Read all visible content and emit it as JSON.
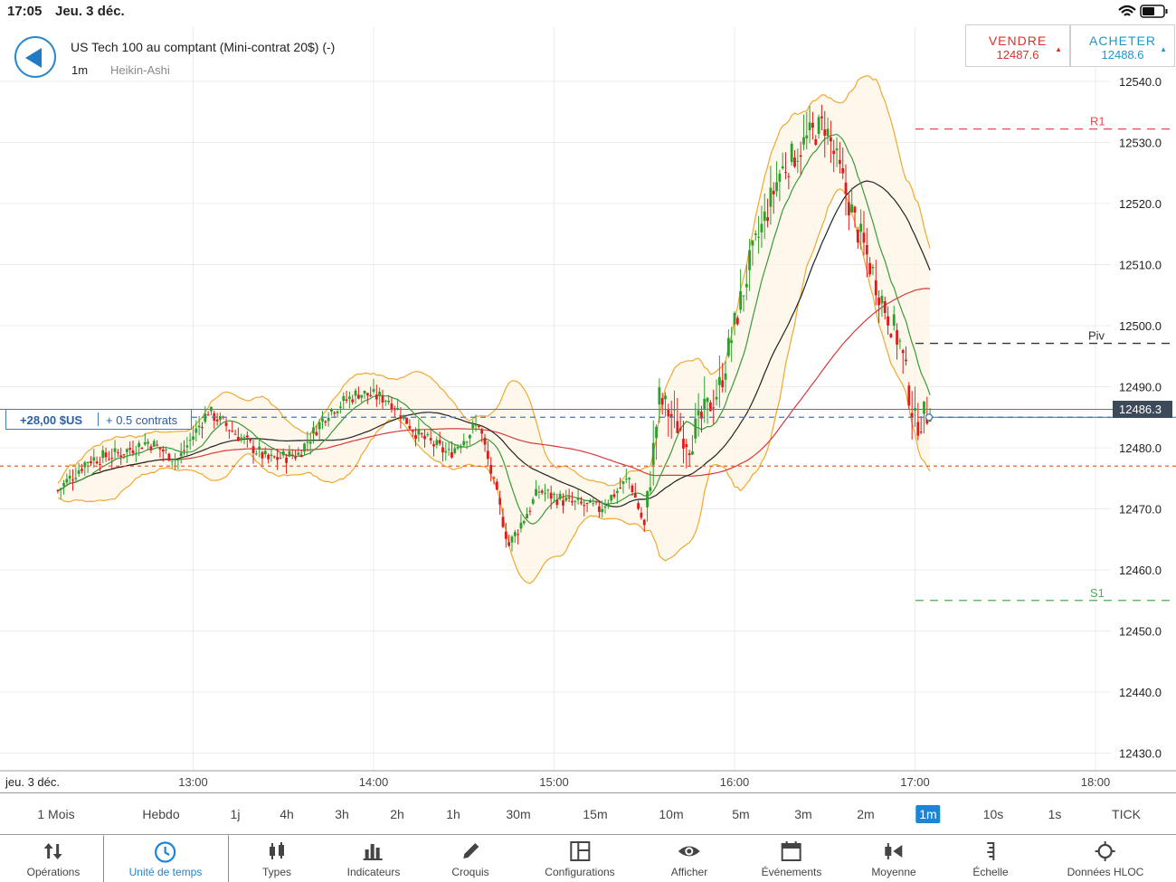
{
  "status": {
    "time": "17:05",
    "date": "Jeu. 3 déc."
  },
  "header": {
    "instrument": "US Tech 100 au comptant (Mini-contrat 20$) (-)",
    "timeframe": "1m",
    "chart_type": "Heikin-Ashi"
  },
  "trade": {
    "sell_label": "VENDRE",
    "sell_price": "12487.6",
    "buy_label": "ACHETER",
    "buy_price": "12488.6"
  },
  "position": {
    "pnl": "+28,00 $US",
    "contracts": "+ 0.5 contrats"
  },
  "price_tag": "12486.3",
  "levels": {
    "r1": "R1",
    "piv": "Piv",
    "s1": "S1"
  },
  "y_axis": [
    "12540.0",
    "12530.0",
    "12520.0",
    "12510.0",
    "12500.0",
    "12490.0",
    "12480.0",
    "12470.0",
    "12460.0",
    "12450.0",
    "12440.0",
    "12430.0"
  ],
  "x_axis": {
    "date": "jeu. 3 déc.",
    "times": [
      "13:00",
      "14:00",
      "15:00",
      "16:00",
      "17:00",
      "18:00"
    ]
  },
  "timeframes": {
    "items": [
      "1 Mois",
      "Hebdo",
      "1j",
      "4h",
      "3h",
      "2h",
      "1h",
      "30m",
      "15m",
      "10m",
      "5m",
      "3m",
      "2m",
      "1m",
      "10s",
      "1s",
      "TICK"
    ],
    "active": "1m"
  },
  "toolbar": {
    "items": [
      {
        "label": "Opérations",
        "icon": "arrows-updown-icon"
      },
      {
        "label": "Unité de temps",
        "icon": "clock-icon"
      },
      {
        "label": "Types",
        "icon": "candles-icon"
      },
      {
        "label": "Indicateurs",
        "icon": "bars-icon"
      },
      {
        "label": "Croquis",
        "icon": "pencil-icon"
      },
      {
        "label": "Configurations",
        "icon": "layout-icon"
      },
      {
        "label": "Afficher",
        "icon": "eye-icon"
      },
      {
        "label": "Événements",
        "icon": "calendar-icon"
      },
      {
        "label": "Moyenne",
        "icon": "average-icon"
      },
      {
        "label": "Échelle",
        "icon": "scale-icon"
      },
      {
        "label": "Données HLOC",
        "icon": "crosshair-icon"
      }
    ],
    "active": "Unité de temps"
  },
  "colors": {
    "up": "#2ca02c",
    "down": "#e01b1b",
    "accent": "#1b85d6",
    "bollinger": "#f0a830",
    "ma_red": "#d83a3a",
    "ma_green": "#3a9a3a",
    "ma_black": "#222222"
  },
  "chart_data": {
    "type": "candlestick",
    "y_ticks": [
      12540,
      12530,
      12520,
      12510,
      12500,
      12490,
      12480,
      12470,
      12460,
      12450,
      12440,
      12430
    ],
    "x_ticks": [
      "13:00",
      "14:00",
      "15:00",
      "16:00",
      "17:00",
      "18:00"
    ],
    "levels": {
      "R1": 12532.2,
      "Piv": 12497.1,
      "S1": 12455.0,
      "position": 12485.0,
      "last": 12486.3,
      "entry": 12477.0
    },
    "ohlc_path": [
      {
        "t": "12:15",
        "v": 12473
      },
      {
        "t": "12:25",
        "v": 12478
      },
      {
        "t": "12:35",
        "v": 12479
      },
      {
        "t": "12:45",
        "v": 12481
      },
      {
        "t": "12:55",
        "v": 12478
      },
      {
        "t": "13:05",
        "v": 12486
      },
      {
        "t": "13:15",
        "v": 12482
      },
      {
        "t": "13:25",
        "v": 12478
      },
      {
        "t": "13:35",
        "v": 12479
      },
      {
        "t": "13:45",
        "v": 12486
      },
      {
        "t": "13:55",
        "v": 12489
      },
      {
        "t": "14:05",
        "v": 12488
      },
      {
        "t": "14:15",
        "v": 12482
      },
      {
        "t": "14:25",
        "v": 12479
      },
      {
        "t": "14:35",
        "v": 12484
      },
      {
        "t": "14:42",
        "v": 12470
      },
      {
        "t": "14:45",
        "v": 12464
      },
      {
        "t": "14:55",
        "v": 12473
      },
      {
        "t": "15:05",
        "v": 12471
      },
      {
        "t": "15:15",
        "v": 12470
      },
      {
        "t": "15:25",
        "v": 12475
      },
      {
        "t": "15:30",
        "v": 12467
      },
      {
        "t": "15:35",
        "v": 12488
      },
      {
        "t": "15:45",
        "v": 12481
      },
      {
        "t": "15:55",
        "v": 12490
      },
      {
        "t": "16:05",
        "v": 12510
      },
      {
        "t": "16:15",
        "v": 12525
      },
      {
        "t": "16:25",
        "v": 12531
      },
      {
        "t": "16:30",
        "v": 12533
      },
      {
        "t": "16:40",
        "v": 12517
      },
      {
        "t": "16:50",
        "v": 12503
      },
      {
        "t": "16:55",
        "v": 12497
      },
      {
        "t": "17:00",
        "v": 12484
      },
      {
        "t": "17:05",
        "v": 12486
      }
    ]
  }
}
